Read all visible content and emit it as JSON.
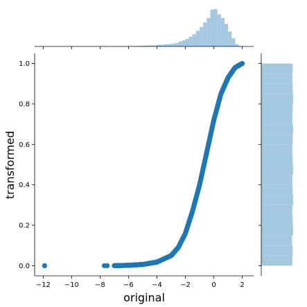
{
  "chart_data": {
    "type": "jointplot",
    "xlabel": "original",
    "ylabel": "transformed",
    "xlim": [
      -12.6,
      2.8
    ],
    "ylim": [
      -0.05,
      1.05
    ],
    "x_ticks": [
      -12,
      -10,
      -8,
      -6,
      -4,
      -2,
      0,
      2
    ],
    "y_ticks": [
      0.0,
      0.2,
      0.4,
      0.6,
      0.8,
      1.0
    ],
    "x_tick_labels": [
      "−12",
      "−10",
      "−8",
      "−6",
      "−4",
      "−2",
      "0",
      "2"
    ],
    "y_tick_labels": [
      "0.0",
      "0.2",
      "0.4",
      "0.6",
      "0.8",
      "1.0"
    ],
    "scatter": {
      "description": "transformed = CDF of original (logistic-like S curve)",
      "outlier": {
        "x": -11.9,
        "y": 0.0
      },
      "isolated_points": [
        {
          "x": -7.7,
          "y": 0.0
        },
        {
          "x": -7.5,
          "y": 0.0
        }
      ],
      "curve_x_range": [
        -7.0,
        2.0
      ],
      "curve": [
        {
          "x": -7.0,
          "y": 0.0
        },
        {
          "x": -6.0,
          "y": 0.002
        },
        {
          "x": -5.0,
          "y": 0.006
        },
        {
          "x": -4.0,
          "y": 0.018
        },
        {
          "x": -3.0,
          "y": 0.05
        },
        {
          "x": -2.5,
          "y": 0.09
        },
        {
          "x": -2.0,
          "y": 0.16
        },
        {
          "x": -1.5,
          "y": 0.27
        },
        {
          "x": -1.0,
          "y": 0.4
        },
        {
          "x": -0.5,
          "y": 0.56
        },
        {
          "x": 0.0,
          "y": 0.72
        },
        {
          "x": 0.5,
          "y": 0.85
        },
        {
          "x": 1.0,
          "y": 0.93
        },
        {
          "x": 1.5,
          "y": 0.98
        },
        {
          "x": 2.0,
          "y": 1.0
        }
      ]
    },
    "top_histogram": {
      "bin_edges": [
        -8.0,
        -7.5,
        -7.0,
        -6.5,
        -6.0,
        -5.5,
        -5.0,
        -4.5,
        -4.0,
        -3.5,
        -3.0,
        -2.75,
        -2.5,
        -2.25,
        -2.0,
        -1.75,
        -1.5,
        -1.25,
        -1.0,
        -0.75,
        -0.5,
        -0.25,
        0.0,
        0.25,
        0.5,
        0.75,
        1.0,
        1.25,
        1.5,
        1.75,
        2.0
      ],
      "counts": [
        0.002,
        0.002,
        0.004,
        0.006,
        0.01,
        0.015,
        0.022,
        0.03,
        0.045,
        0.06,
        0.07,
        0.09,
        0.13,
        0.16,
        0.2,
        0.26,
        0.33,
        0.42,
        0.52,
        0.64,
        0.76,
        0.98,
        1.0,
        0.86,
        0.76,
        0.6,
        0.4,
        0.22,
        0.06,
        0.01
      ]
    },
    "right_histogram": {
      "bin_edges": [
        0.0,
        0.05,
        0.1,
        0.15,
        0.2,
        0.25,
        0.3,
        0.35,
        0.4,
        0.45,
        0.5,
        0.55,
        0.6,
        0.65,
        0.7,
        0.75,
        0.8,
        0.85,
        0.9,
        0.95,
        1.0
      ],
      "counts": [
        0.83,
        0.84,
        0.82,
        0.85,
        0.84,
        0.83,
        0.85,
        0.84,
        0.83,
        0.85,
        0.84,
        0.83,
        0.84,
        0.85,
        0.83,
        0.84,
        0.85,
        0.84,
        0.83,
        0.84
      ]
    }
  }
}
